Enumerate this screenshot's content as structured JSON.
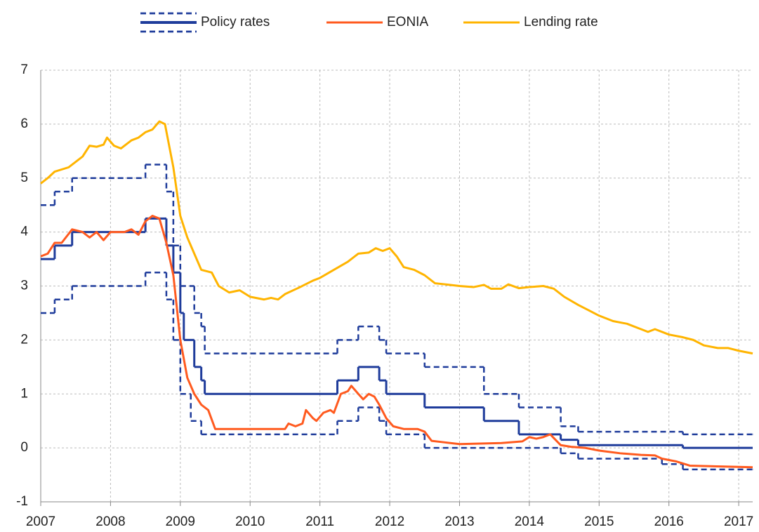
{
  "chart_data": {
    "type": "line",
    "xlim": [
      2007,
      2017.2
    ],
    "xticks": [
      2007,
      2008,
      2009,
      2010,
      2011,
      2012,
      2013,
      2014,
      2015,
      2016,
      2017
    ],
    "ylim": [
      -1,
      7
    ],
    "yticks": [
      -1,
      0,
      1,
      2,
      3,
      4,
      5,
      6,
      7
    ],
    "grid": true,
    "series": [
      {
        "color": "#1f3c9b",
        "style": "dashed",
        "step": true,
        "x": [
          2007,
          2007.2,
          2007.45,
          2008.5,
          2008.8,
          2008.9,
          2009.0,
          2009.2,
          2009.3,
          2009.35,
          2011.25,
          2011.55,
          2011.85,
          2011.95,
          2012.5,
          2013.35,
          2013.85,
          2014.45,
          2014.7,
          2016.2,
          2017.2
        ],
        "values": [
          4.5,
          4.75,
          5.0,
          5.25,
          4.75,
          3.75,
          3.0,
          2.5,
          2.25,
          1.75,
          2.0,
          2.25,
          2.0,
          1.75,
          1.5,
          1.0,
          0.75,
          0.4,
          0.3,
          0.25,
          0.25
        ]
      },
      {
        "name": "Policy rates",
        "color": "#1f3c9b",
        "style": "solid",
        "step": true,
        "x": [
          2007,
          2007.2,
          2007.45,
          2008.5,
          2008.8,
          2008.9,
          2009.0,
          2009.05,
          2009.2,
          2009.3,
          2009.35,
          2011.25,
          2011.55,
          2011.85,
          2011.95,
          2012.5,
          2013.35,
          2013.85,
          2014.45,
          2014.7,
          2016.2,
          2017.2
        ],
        "values": [
          3.5,
          3.75,
          4.0,
          4.25,
          3.75,
          3.25,
          2.5,
          2.0,
          1.5,
          1.25,
          1.0,
          1.25,
          1.5,
          1.25,
          1.0,
          0.75,
          0.5,
          0.25,
          0.15,
          0.05,
          0.0,
          0.0
        ]
      },
      {
        "color": "#1f3c9b",
        "style": "dashed",
        "step": true,
        "x": [
          2007,
          2007.2,
          2007.45,
          2008.5,
          2008.8,
          2008.9,
          2009.0,
          2009.15,
          2009.3,
          2011.25,
          2011.55,
          2011.85,
          2011.95,
          2012.5,
          2014.45,
          2014.7,
          2015.9,
          2016.2,
          2017.2
        ],
        "values": [
          2.5,
          2.75,
          3.0,
          3.25,
          2.75,
          2.0,
          1.0,
          0.5,
          0.25,
          0.5,
          0.75,
          0.5,
          0.25,
          0.0,
          -0.1,
          -0.2,
          -0.3,
          -0.4,
          -0.4
        ]
      },
      {
        "name": "EONIA",
        "color": "#ff5a1f",
        "style": "solid",
        "x": [
          2007.0,
          2007.1,
          2007.2,
          2007.3,
          2007.45,
          2007.6,
          2007.7,
          2007.8,
          2007.9,
          2008.0,
          2008.2,
          2008.3,
          2008.4,
          2008.5,
          2008.6,
          2008.7,
          2008.8,
          2008.9,
          2009.0,
          2009.1,
          2009.2,
          2009.3,
          2009.4,
          2009.5,
          2009.7,
          2010.0,
          2010.3,
          2010.5,
          2010.55,
          2010.65,
          2010.75,
          2010.8,
          2010.9,
          2010.95,
          2011.05,
          2011.15,
          2011.2,
          2011.3,
          2011.4,
          2011.45,
          2011.55,
          2011.62,
          2011.7,
          2011.78,
          2011.85,
          2011.95,
          2012.05,
          2012.2,
          2012.4,
          2012.5,
          2012.6,
          2012.8,
          2013.0,
          2013.3,
          2013.6,
          2013.9,
          2014.0,
          2014.1,
          2014.2,
          2014.3,
          2014.45,
          2014.6,
          2014.8,
          2015.0,
          2015.3,
          2015.6,
          2015.8,
          2015.9,
          2016.1,
          2016.3,
          2016.6,
          2016.9,
          2017.2
        ],
        "values": [
          3.55,
          3.6,
          3.8,
          3.8,
          4.05,
          4.0,
          3.9,
          4.0,
          3.85,
          4.0,
          4.0,
          4.05,
          3.95,
          4.2,
          4.3,
          4.25,
          3.8,
          3.2,
          2.0,
          1.3,
          1.0,
          0.8,
          0.7,
          0.35,
          0.35,
          0.35,
          0.35,
          0.35,
          0.45,
          0.4,
          0.45,
          0.7,
          0.55,
          0.5,
          0.65,
          0.7,
          0.65,
          1.0,
          1.05,
          1.15,
          1.0,
          0.9,
          1.0,
          0.95,
          0.8,
          0.55,
          0.4,
          0.35,
          0.35,
          0.3,
          0.13,
          0.1,
          0.07,
          0.08,
          0.09,
          0.12,
          0.2,
          0.17,
          0.2,
          0.25,
          0.05,
          0.02,
          0.0,
          -0.05,
          -0.1,
          -0.13,
          -0.14,
          -0.2,
          -0.25,
          -0.33,
          -0.34,
          -0.35,
          -0.36
        ]
      },
      {
        "name": "Lending rate",
        "color": "#ffb400",
        "style": "solid",
        "x": [
          2007.0,
          2007.1,
          2007.2,
          2007.4,
          2007.5,
          2007.6,
          2007.7,
          2007.8,
          2007.9,
          2007.95,
          2008.05,
          2008.15,
          2008.3,
          2008.4,
          2008.5,
          2008.6,
          2008.7,
          2008.78,
          2008.9,
          2009.0,
          2009.1,
          2009.2,
          2009.3,
          2009.45,
          2009.55,
          2009.7,
          2009.85,
          2010.0,
          2010.2,
          2010.3,
          2010.4,
          2010.5,
          2010.7,
          2010.9,
          2011.0,
          2011.2,
          2011.4,
          2011.55,
          2011.7,
          2011.8,
          2011.9,
          2012.0,
          2012.1,
          2012.2,
          2012.35,
          2012.5,
          2012.65,
          2012.8,
          2013.0,
          2013.2,
          2013.35,
          2013.45,
          2013.6,
          2013.7,
          2013.85,
          2014.0,
          2014.2,
          2014.35,
          2014.5,
          2014.7,
          2014.85,
          2015.0,
          2015.2,
          2015.4,
          2015.6,
          2015.7,
          2015.8,
          2016.0,
          2016.2,
          2016.35,
          2016.5,
          2016.7,
          2016.85,
          2017.0,
          2017.2
        ],
        "values": [
          4.9,
          5.0,
          5.12,
          5.2,
          5.3,
          5.4,
          5.6,
          5.58,
          5.62,
          5.75,
          5.6,
          5.55,
          5.7,
          5.75,
          5.85,
          5.9,
          6.05,
          6.0,
          5.2,
          4.3,
          3.9,
          3.6,
          3.3,
          3.25,
          3.0,
          2.88,
          2.92,
          2.8,
          2.75,
          2.78,
          2.75,
          2.85,
          2.97,
          3.1,
          3.15,
          3.3,
          3.45,
          3.6,
          3.62,
          3.7,
          3.65,
          3.7,
          3.55,
          3.35,
          3.3,
          3.2,
          3.05,
          3.03,
          3.0,
          2.98,
          3.02,
          2.95,
          2.95,
          3.03,
          2.96,
          2.98,
          3.0,
          2.95,
          2.8,
          2.65,
          2.55,
          2.45,
          2.35,
          2.3,
          2.2,
          2.15,
          2.2,
          2.1,
          2.05,
          2.0,
          1.9,
          1.85,
          1.85,
          1.8,
          1.75
        ]
      }
    ]
  }
}
